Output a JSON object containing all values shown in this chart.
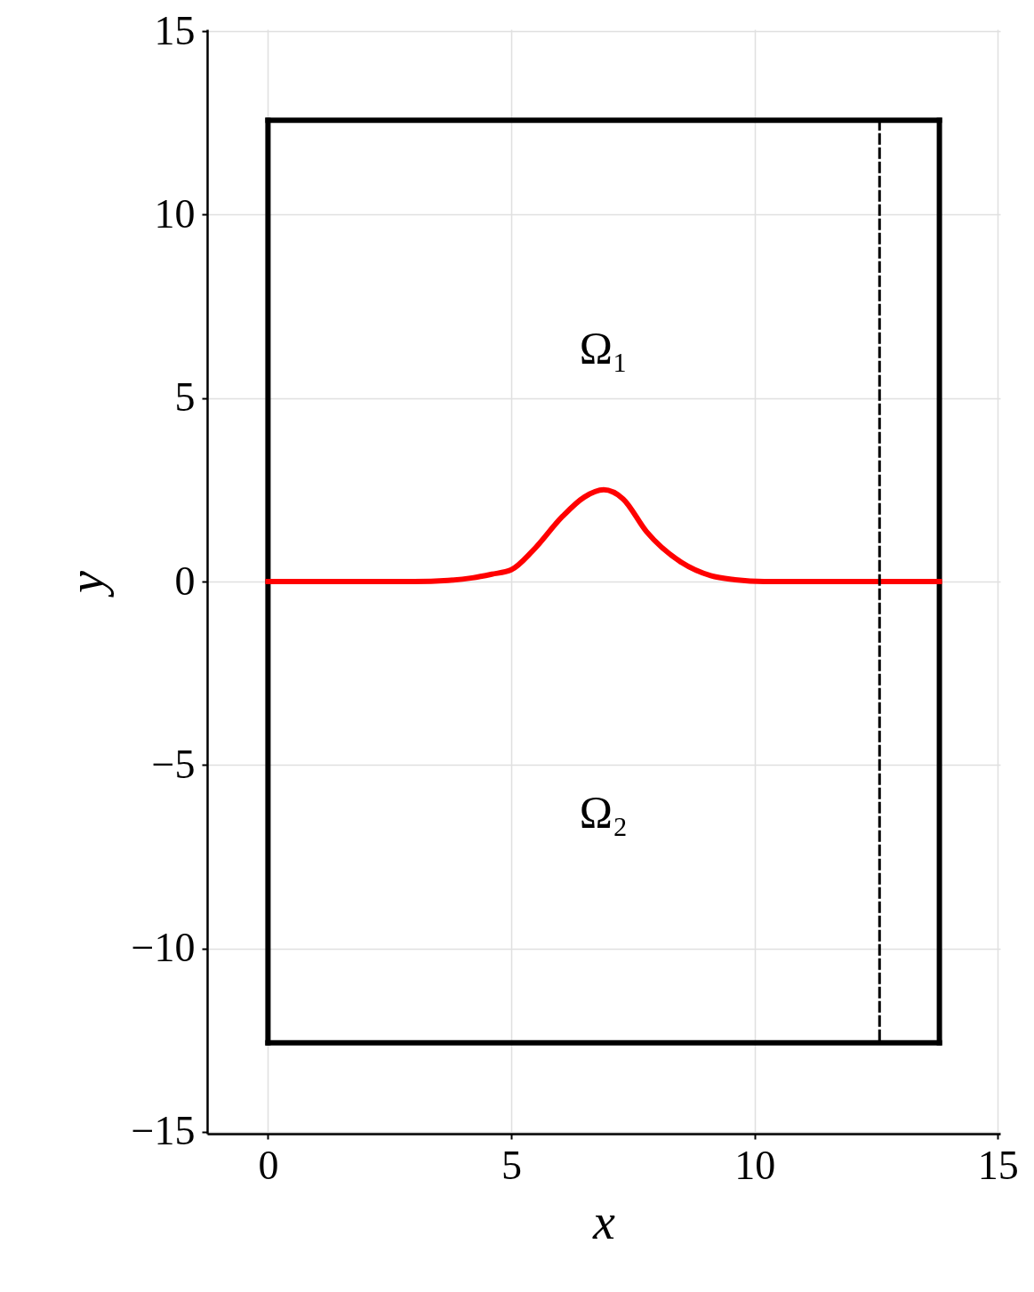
{
  "chart_data": {
    "type": "line",
    "xlabel": "x",
    "ylabel": "y",
    "xlim": [
      -1.25,
      15.05
    ],
    "ylim": [
      -15.05,
      15.05
    ],
    "xticks": [
      0,
      5,
      10,
      15
    ],
    "yticks": [
      {
        "value": -15,
        "label": "−15"
      },
      {
        "value": -10,
        "label": "−10"
      },
      {
        "value": -5,
        "label": "−5"
      },
      0,
      5,
      10,
      15
    ],
    "grid": true,
    "series": [
      {
        "color": "#000000",
        "line_style": "solid",
        "x": [
          0,
          13.8
        ],
        "values": [
          12.57,
          12.57
        ]
      },
      {
        "color": "#000000",
        "line_style": "solid",
        "x": [
          0,
          13.8
        ],
        "values": [
          -12.57,
          -12.57
        ]
      },
      {
        "color": "#000000",
        "line_style": "solid",
        "x": [
          0,
          0
        ],
        "values": [
          12.57,
          -12.57
        ]
      },
      {
        "color": "#000000",
        "line_style": "solid",
        "x": [
          13.8,
          13.8
        ],
        "values": [
          12.57,
          -12.57
        ]
      },
      {
        "color": "#ff0000",
        "line_style": "solid",
        "x": [
          0,
          3,
          3.7,
          4.2,
          4.6,
          5,
          5.45,
          6.05,
          6.5,
          6.9,
          7.3,
          7.78,
          8.5,
          9.1,
          9.6,
          10.2,
          13.8
        ],
        "values": [
          0,
          0,
          0.03,
          0.1,
          0.2,
          0.32,
          0.85,
          1.77,
          2.3,
          2.5,
          2.25,
          1.36,
          0.52,
          0.16,
          0.05,
          0,
          0
        ]
      },
      {
        "color": "#000000",
        "line_style": "dashed",
        "x": [
          12.57,
          12.57
        ],
        "values": [
          12.57,
          -12.57
        ]
      }
    ],
    "annotations": [
      "Ω₁",
      "Ω₂"
    ]
  }
}
